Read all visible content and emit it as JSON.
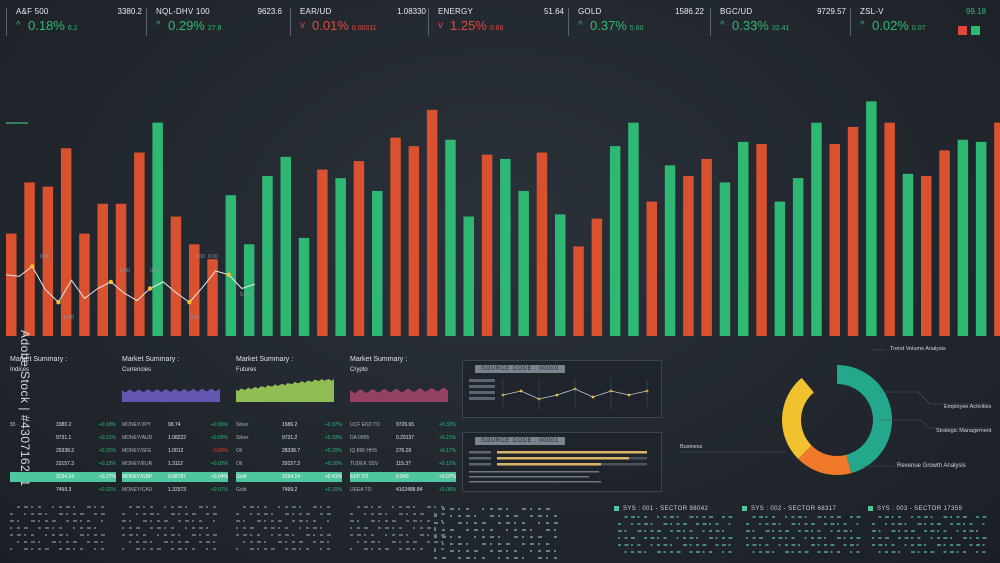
{
  "ticker": [
    {
      "name": "A&F 500",
      "val": "3380.2",
      "dir": "up",
      "pct": "0.18%",
      "sub": "6.2"
    },
    {
      "name": "NQL-DHV 100",
      "val": "9623.6",
      "dir": "up",
      "pct": "0.29%",
      "sub": "27.8"
    },
    {
      "name": "EAR/UD",
      "val": "1.08330",
      "dir": "dn",
      "pct": "0.01%",
      "sub": "0.00011"
    },
    {
      "name": "ENERGY",
      "val": "51.64",
      "dir": "dn",
      "pct": "1.25%",
      "sub": "0.66"
    },
    {
      "name": "GOLD",
      "val": "1586.22",
      "dir": "up",
      "pct": "0.37%",
      "sub": "5.60"
    },
    {
      "name": "BGC/UD",
      "val": "9729.57",
      "dir": "up",
      "pct": "0.33%",
      "sub": "32.41"
    },
    {
      "name": "ZSL-V",
      "val": "99.18",
      "dir": "up",
      "pct": "0.02%",
      "sub": "0.07"
    }
  ],
  "colors": {
    "up": "#2eb873",
    "down": "#e4463c",
    "bar_up": "#2eb873",
    "bar_down": "#d9512e",
    "accent": "#4fc6a0"
  },
  "chart_data": {
    "type": "bar",
    "title": "",
    "series": [
      {
        "values": [
          48,
          72,
          70,
          88,
          48,
          62,
          62,
          86,
          100,
          56,
          43,
          36,
          66,
          43,
          75,
          84,
          46,
          78,
          74,
          82,
          68,
          93,
          89,
          106,
          92,
          56,
          85,
          83,
          68,
          86,
          57,
          42,
          55,
          89,
          100,
          63,
          80,
          75,
          83,
          72,
          91,
          90,
          63,
          74,
          100,
          90,
          98,
          110,
          100,
          76,
          75,
          87,
          92,
          91,
          100,
          72,
          75
        ],
        "colors": [
          "d",
          "d",
          "d",
          "d",
          "d",
          "d",
          "d",
          "d",
          "u",
          "d",
          "d",
          "d",
          "u",
          "u",
          "u",
          "u",
          "u",
          "d",
          "u",
          "d",
          "u",
          "d",
          "d",
          "d",
          "u",
          "u",
          "d",
          "u",
          "u",
          "d",
          "u",
          "d",
          "d",
          "u",
          "u",
          "d",
          "u",
          "d",
          "d",
          "u",
          "u",
          "d",
          "u",
          "u",
          "u",
          "d",
          "d",
          "u",
          "d",
          "u",
          "d",
          "d",
          "u",
          "u",
          "d",
          "u",
          "u"
        ]
      }
    ],
    "overlay_line": {
      "points": [
        0.45,
        0.48,
        0.3,
        0.72,
        0.95,
        0.55,
        0.88,
        0.7,
        0.58,
        0.78,
        0.92,
        0.7,
        0.58,
        0.78,
        0.95,
        0.68,
        0.38,
        0.45,
        0.7,
        0.62
      ]
    },
    "overlay_labels": [
      "0.00",
      "0.00",
      "0.00",
      "0.00",
      "0.00",
      "0.00",
      "0.00",
      "0.00"
    ],
    "ylim": [
      0,
      120
    ]
  },
  "side_text": "Adobe Stock | #430716281",
  "market": [
    {
      "title": "Market Summary :",
      "subtitle": "Indices",
      "color": "#9aa3ad",
      "rows": [
        [
          "$5 ·",
          "3380.2",
          "+0.18%"
        ],
        [
          "",
          "9731.1",
          "+0.21%"
        ],
        [
          "",
          "29338.2",
          "+0.25%"
        ],
        [
          "",
          "23157.3",
          "+0.13%"
        ],
        [
          "",
          "3194.14",
          "+0.27%"
        ],
        [
          "",
          "7499.3",
          "+0.32%"
        ]
      ]
    },
    {
      "title": "Market Summary :",
      "subtitle": "Currencies",
      "color": "#6f5fc6",
      "rows": [
        [
          "MONEY/JPY",
          "99.74",
          "+0.06%"
        ],
        [
          "MONEY/AUD",
          "1.08222",
          "+0.05%"
        ],
        [
          "MONEY/SFE",
          "1.0012",
          "-0.02%"
        ],
        [
          "MONEY/EUR",
          "1.3112",
          "+0.03%"
        ],
        [
          "MONEY/GBP",
          "0.68787",
          "+0.04%"
        ],
        [
          "MONEY/CAD",
          "1.32573",
          "+0.07%"
        ]
      ]
    },
    {
      "title": "Market Summary :",
      "subtitle": "Futures",
      "color": "#a3d85a",
      "rows": [
        [
          "Silver",
          "1586.2",
          "+0.37%"
        ],
        [
          "Silver",
          "9731.2",
          "+0.33%"
        ],
        [
          "Oil",
          "28338.7",
          "+0.29%"
        ],
        [
          "Oil",
          "29157.3",
          "+0.26%"
        ],
        [
          "Gold",
          "3194.14",
          "+0.41%"
        ],
        [
          "Gold",
          "7499.2",
          "+0.19%"
        ]
      ]
    },
    {
      "title": "Market Summary :",
      "subtitle": "Crypto",
      "color": "#a8456c",
      "rows": [
        [
          "UCF EKD TO",
          "9726.65",
          "+0.33%"
        ],
        [
          "DA 0895",
          "0.29137",
          "+0.21%"
        ],
        [
          "IQ 896 HHS",
          "276.03",
          "+0.17%"
        ],
        [
          "TUDEK SSV",
          "115.37",
          "+0.12%"
        ],
        [
          "EKP TO",
          "0.840",
          "+0.07%"
        ],
        [
          "UEEA TO",
          "4102488.84",
          "+0.08%"
        ]
      ]
    }
  ],
  "codebox1": {
    "header": "SOURCE CODE : 00000"
  },
  "codebox2": {
    "header": "SOURCE CODE : 00001"
  },
  "donut": {
    "segments": [
      {
        "value": 38,
        "color": "#24a88c"
      },
      {
        "value": 14,
        "color": "#f07a2a"
      },
      {
        "value": 22,
        "color": "#f2c12e"
      }
    ],
    "labels": {
      "trend": "Trend Volume Analysis",
      "employee": "Employee Activities",
      "strategic": "Strategic Management",
      "business": "Business",
      "revenue": "Revenue Growth Analysis"
    }
  },
  "sys": [
    "SYS : 001 - SECTOR 98042",
    "SYS : 002 - SECTOR 68317",
    "SYS : 003 - SECTOR 17359"
  ]
}
